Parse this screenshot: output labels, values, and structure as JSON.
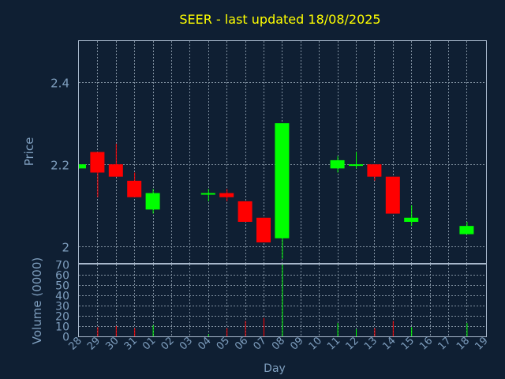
{
  "chart_data": {
    "type": "candlestick",
    "title": "SEER - last updated 18/08/2025",
    "xlabel": "Day",
    "colors": {
      "background": "#0f1f33",
      "axis": "#a8b8cc",
      "grid": "#8090a0",
      "up": "#00ff00",
      "down": "#ff0000",
      "title": "#ffff00",
      "label": "#7f9fbf"
    },
    "x_ticks": [
      "28",
      "29",
      "30",
      "31",
      "01",
      "02",
      "03",
      "04",
      "05",
      "06",
      "07",
      "08",
      "09",
      "10",
      "11",
      "12",
      "13",
      "14",
      "15",
      "16",
      "17",
      "18",
      "19"
    ],
    "price_panel": {
      "ylabel": "Price",
      "ylim": [
        1.96,
        2.5
      ],
      "y_ticks": [
        2.0,
        2.2,
        2.4
      ],
      "y_tick_labels": [
        "2",
        "2.2",
        "2.4"
      ],
      "grid": true
    },
    "volume_panel": {
      "ylabel": "Volume (0000)",
      "ylim": [
        0,
        70
      ],
      "y_ticks": [
        0,
        10,
        20,
        30,
        40,
        50,
        60,
        70
      ],
      "y_tick_labels": [
        "0",
        "10",
        "20",
        "30",
        "40",
        "50",
        "60",
        "70"
      ],
      "grid": true
    },
    "candles": [
      {
        "day": "28",
        "open": 2.19,
        "close": 2.2,
        "high": 2.2,
        "low": 2.19,
        "volume": 0
      },
      {
        "day": "29",
        "open": 2.23,
        "close": 2.18,
        "high": 2.23,
        "low": 2.12,
        "volume": 9
      },
      {
        "day": "30",
        "open": 2.2,
        "close": 2.17,
        "high": 2.25,
        "low": 2.17,
        "volume": 10
      },
      {
        "day": "31",
        "open": 2.16,
        "close": 2.12,
        "high": 2.18,
        "low": 2.12,
        "volume": 8
      },
      {
        "day": "01",
        "open": 2.09,
        "close": 2.13,
        "high": 2.14,
        "low": 2.08,
        "volume": 11
      },
      {
        "day": "04",
        "open": 2.13,
        "close": 2.13,
        "high": 2.14,
        "low": 2.11,
        "volume": 2
      },
      {
        "day": "05",
        "open": 2.13,
        "close": 2.12,
        "high": 2.14,
        "low": 2.11,
        "volume": 8
      },
      {
        "day": "06",
        "open": 2.11,
        "close": 2.06,
        "high": 2.11,
        "low": 2.06,
        "volume": 15
      },
      {
        "day": "07",
        "open": 2.07,
        "close": 2.01,
        "high": 2.07,
        "low": 2.01,
        "volume": 18
      },
      {
        "day": "08",
        "open": 2.02,
        "close": 2.3,
        "high": 2.3,
        "low": 1.97,
        "volume": 70
      },
      {
        "day": "11",
        "open": 2.19,
        "close": 2.21,
        "high": 2.22,
        "low": 2.18,
        "volume": 13
      },
      {
        "day": "12",
        "open": 2.2,
        "close": 2.2,
        "high": 2.23,
        "low": 2.19,
        "volume": 7
      },
      {
        "day": "13",
        "open": 2.2,
        "close": 2.17,
        "high": 2.2,
        "low": 2.16,
        "volume": 8
      },
      {
        "day": "14",
        "open": 2.17,
        "close": 2.08,
        "high": 2.17,
        "low": 2.08,
        "volume": 15
      },
      {
        "day": "15",
        "open": 2.06,
        "close": 2.07,
        "high": 2.1,
        "low": 2.05,
        "volume": 9
      },
      {
        "day": "18",
        "open": 2.03,
        "close": 2.05,
        "high": 2.06,
        "low": 2.03,
        "volume": 13
      }
    ]
  }
}
